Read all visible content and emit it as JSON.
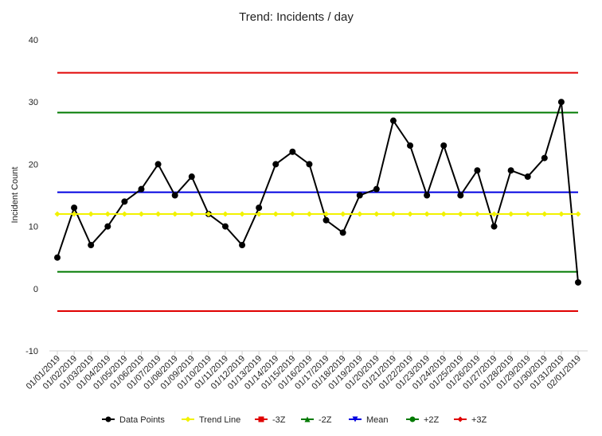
{
  "chart_data": {
    "type": "line",
    "title": "Trend: Incidents / day",
    "ylabel": "Incident Count",
    "ylim": [
      -10,
      40
    ],
    "yticks": [
      -10,
      0,
      10,
      20,
      30,
      40
    ],
    "grid": false,
    "legend_position": "bottom",
    "categories": [
      "01/01/2019",
      "01/02/2019",
      "01/03/2019",
      "01/04/2019",
      "01/05/2019",
      "01/06/2019",
      "01/07/2019",
      "01/08/2019",
      "01/09/2019",
      "01/10/2019",
      "01/11/2019",
      "01/12/2019",
      "01/13/2019",
      "01/14/2019",
      "01/15/2019",
      "01/16/2019",
      "01/17/2019",
      "01/18/2019",
      "01/19/2019",
      "01/20/2019",
      "01/21/2019",
      "01/22/2019",
      "01/23/2019",
      "01/24/2019",
      "01/25/2019",
      "01/26/2019",
      "01/27/2019",
      "01/28/2019",
      "01/29/2019",
      "01/30/2019",
      "01/31/2019",
      "02/01/2019"
    ],
    "series": [
      {
        "name": "Data Points",
        "color": "#000000",
        "marker": "circle",
        "values": [
          5,
          13,
          7,
          10,
          14,
          16,
          20,
          15,
          18,
          12,
          10,
          7,
          13,
          20,
          22,
          20,
          11,
          9,
          15,
          16,
          27,
          23,
          15,
          23,
          15,
          19,
          10,
          19,
          18,
          21,
          30,
          1
        ]
      },
      {
        "name": "Trend Line",
        "color": "#f2f200",
        "marker": "diamond",
        "values": [
          12,
          12,
          12,
          12,
          12,
          12,
          12,
          12,
          12,
          12,
          12,
          12,
          12,
          12,
          12,
          12,
          12,
          12,
          12,
          12,
          12,
          12,
          12,
          12,
          12,
          12,
          12,
          12,
          12,
          12,
          12,
          12
        ]
      }
    ],
    "control_lines": [
      {
        "name": "-3Z",
        "value": -3.6,
        "color": "#e00000",
        "marker": "square"
      },
      {
        "name": "-2Z",
        "value": 2.7,
        "color": "#007a00",
        "marker": "triangle-up"
      },
      {
        "name": "Mean",
        "value": 15.5,
        "color": "#0000e0",
        "marker": "triangle-down"
      },
      {
        "name": "+2Z",
        "value": 28.3,
        "color": "#007a00",
        "marker": "circle"
      },
      {
        "name": "+3Z",
        "value": 34.7,
        "color": "#e00000",
        "marker": "diamond"
      }
    ]
  }
}
